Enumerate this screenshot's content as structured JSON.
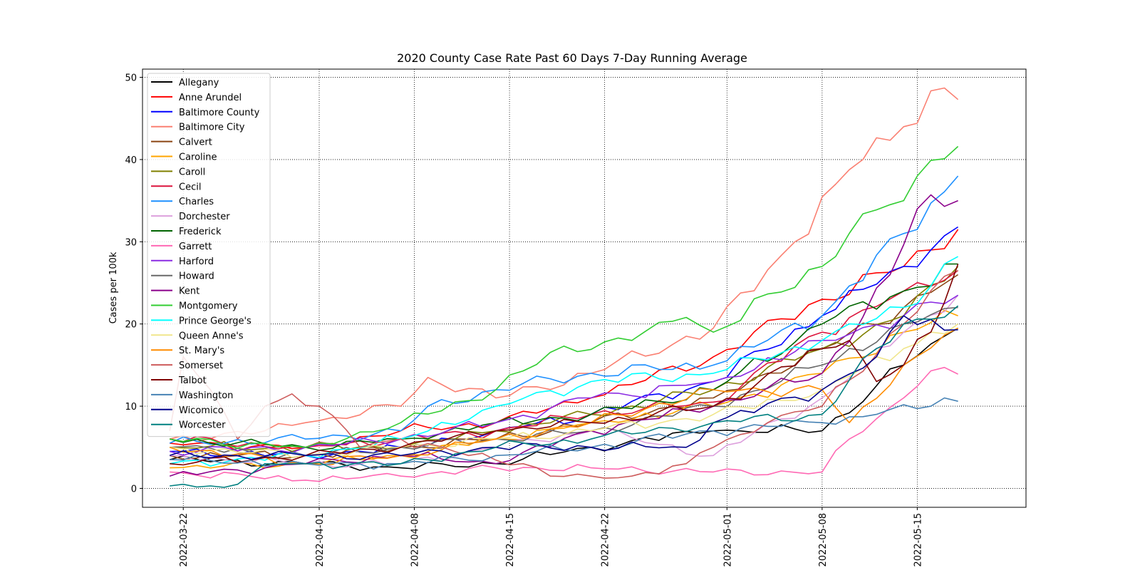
{
  "chart_data": {
    "type": "line",
    "title": "2020 County Case Rate  Past 60 Days 7-Day Running Average",
    "xlabel": "",
    "ylabel": "Cases per 100k",
    "x_start": "2022-03-21",
    "x_end": "2022-05-19",
    "xlim": [
      "2022-03-19",
      "2022-05-23"
    ],
    "ylim": [
      -2.3,
      51
    ],
    "xticks": [
      "2022-03-22",
      "2022-04-01",
      "2022-04-08",
      "2022-04-15",
      "2022-04-22",
      "2022-05-01",
      "2022-05-08",
      "2022-05-15"
    ],
    "yticks": [
      0,
      10,
      20,
      30,
      40,
      50
    ],
    "grid": true,
    "legend_position": "upper-left",
    "series": [
      {
        "name": "Allegany",
        "color": "#000000",
        "anchors": [
          [
            0,
            3.5
          ],
          [
            10,
            3
          ],
          [
            17,
            2.5
          ],
          [
            24,
            3
          ],
          [
            31,
            5
          ],
          [
            40,
            7
          ],
          [
            48,
            7
          ],
          [
            54,
            15
          ],
          [
            58,
            19.5
          ]
        ]
      },
      {
        "name": "Anne Arundel",
        "color": "#ff0000",
        "anchors": [
          [
            0,
            5.5
          ],
          [
            10,
            5
          ],
          [
            17,
            7
          ],
          [
            24,
            8
          ],
          [
            31,
            11
          ],
          [
            40,
            16
          ],
          [
            48,
            23
          ],
          [
            54,
            27
          ],
          [
            56,
            29
          ],
          [
            58,
            31.5
          ]
        ]
      },
      {
        "name": "Baltimore County",
        "color": "#0000ff",
        "anchors": [
          [
            0,
            4.5
          ],
          [
            10,
            4
          ],
          [
            17,
            5
          ],
          [
            24,
            7
          ],
          [
            31,
            9
          ],
          [
            40,
            13
          ],
          [
            48,
            21
          ],
          [
            54,
            27
          ],
          [
            56,
            29
          ],
          [
            58,
            31.8
          ]
        ]
      },
      {
        "name": "Baltimore City",
        "color": "#fa8072",
        "anchors": [
          [
            0,
            6
          ],
          [
            7,
            7
          ],
          [
            10,
            8
          ],
          [
            17,
            10
          ],
          [
            19,
            13.5
          ],
          [
            24,
            11
          ],
          [
            31,
            14
          ],
          [
            40,
            19.5
          ],
          [
            46,
            30
          ],
          [
            49,
            37
          ],
          [
            51,
            40
          ],
          [
            54,
            44
          ],
          [
            57,
            48.7
          ],
          [
            58,
            47.3
          ]
        ]
      },
      {
        "name": "Calvert",
        "color": "#8b4513",
        "anchors": [
          [
            0,
            4
          ],
          [
            10,
            4
          ],
          [
            17,
            5
          ],
          [
            24,
            6
          ],
          [
            31,
            8
          ],
          [
            40,
            11
          ],
          [
            48,
            17
          ],
          [
            54,
            22
          ],
          [
            58,
            26
          ]
        ]
      },
      {
        "name": "Caroline",
        "color": "#ffa500",
        "anchors": [
          [
            0,
            2.5
          ],
          [
            10,
            3
          ],
          [
            17,
            4
          ],
          [
            24,
            6
          ],
          [
            31,
            8
          ],
          [
            40,
            10
          ],
          [
            48,
            14
          ],
          [
            54,
            19
          ],
          [
            58,
            21
          ]
        ]
      },
      {
        "name": "Caroll",
        "color": "#808000",
        "anchors": [
          [
            0,
            5
          ],
          [
            10,
            5
          ],
          [
            17,
            5
          ],
          [
            24,
            7
          ],
          [
            31,
            9
          ],
          [
            40,
            12
          ],
          [
            48,
            17
          ],
          [
            54,
            21
          ],
          [
            58,
            27
          ]
        ]
      },
      {
        "name": "Cecil",
        "color": "#dc143c",
        "anchors": [
          [
            0,
            6
          ],
          [
            10,
            5
          ],
          [
            17,
            6
          ],
          [
            24,
            7
          ],
          [
            31,
            9
          ],
          [
            40,
            10.5
          ],
          [
            48,
            19
          ],
          [
            54,
            24
          ],
          [
            58,
            26.5
          ]
        ]
      },
      {
        "name": "Charles",
        "color": "#1e90ff",
        "anchors": [
          [
            0,
            5.5
          ],
          [
            10,
            6
          ],
          [
            17,
            7
          ],
          [
            19,
            10
          ],
          [
            24,
            12
          ],
          [
            31,
            14
          ],
          [
            40,
            15
          ],
          [
            48,
            21
          ],
          [
            54,
            31
          ],
          [
            58,
            38
          ]
        ]
      },
      {
        "name": "Dorchester",
        "color": "#dda0dd",
        "anchors": [
          [
            0,
            4
          ],
          [
            10,
            3
          ],
          [
            17,
            3
          ],
          [
            24,
            5
          ],
          [
            31,
            7
          ],
          [
            40,
            4
          ],
          [
            48,
            11
          ],
          [
            54,
            19
          ],
          [
            58,
            23.5
          ]
        ]
      },
      {
        "name": "Frederick",
        "color": "#006400",
        "anchors": [
          [
            0,
            6
          ],
          [
            10,
            5
          ],
          [
            17,
            6
          ],
          [
            24,
            8
          ],
          [
            31,
            9
          ],
          [
            40,
            12
          ],
          [
            48,
            20
          ],
          [
            54,
            24
          ],
          [
            58,
            27.3
          ]
        ]
      },
      {
        "name": "Garrett",
        "color": "#ff69b4",
        "anchors": [
          [
            0,
            2
          ],
          [
            10,
            1
          ],
          [
            17,
            1.5
          ],
          [
            24,
            2.5
          ],
          [
            31,
            2.5
          ],
          [
            40,
            2
          ],
          [
            48,
            2
          ],
          [
            50,
            6
          ],
          [
            54,
            11
          ],
          [
            56,
            14.3
          ],
          [
            58,
            13.9
          ]
        ]
      },
      {
        "name": "Harford",
        "color": "#8a2be2",
        "anchors": [
          [
            0,
            4.5
          ],
          [
            10,
            5
          ],
          [
            17,
            6
          ],
          [
            24,
            8
          ],
          [
            31,
            11
          ],
          [
            40,
            13
          ],
          [
            48,
            18
          ],
          [
            54,
            21
          ],
          [
            58,
            23.5
          ]
        ]
      },
      {
        "name": "Howard",
        "color": "#696969",
        "anchors": [
          [
            0,
            5
          ],
          [
            10,
            4
          ],
          [
            17,
            5
          ],
          [
            24,
            6
          ],
          [
            31,
            7
          ],
          [
            40,
            10
          ],
          [
            48,
            15
          ],
          [
            54,
            20
          ],
          [
            58,
            22
          ]
        ]
      },
      {
        "name": "Kent",
        "color": "#8b008b",
        "anchors": [
          [
            0,
            1.5
          ],
          [
            10,
            3
          ],
          [
            17,
            4
          ],
          [
            24,
            3
          ],
          [
            31,
            7
          ],
          [
            40,
            10
          ],
          [
            48,
            14
          ],
          [
            53,
            26
          ],
          [
            55,
            34
          ],
          [
            56,
            35.7
          ],
          [
            57,
            34.3
          ],
          [
            58,
            35
          ]
        ]
      },
      {
        "name": "Montgomery",
        "color": "#32cd32",
        "anchors": [
          [
            0,
            6
          ],
          [
            10,
            5
          ],
          [
            17,
            8
          ],
          [
            24,
            12
          ],
          [
            29,
            17.3
          ],
          [
            34,
            18
          ],
          [
            38,
            20.8
          ],
          [
            40,
            19
          ],
          [
            48,
            27
          ],
          [
            51,
            33.4
          ],
          [
            54,
            35
          ],
          [
            55,
            38
          ],
          [
            56,
            39.9
          ],
          [
            57,
            40.1
          ],
          [
            58,
            41.6
          ]
        ]
      },
      {
        "name": "Prince George's",
        "color": "#00ffff",
        "anchors": [
          [
            0,
            3
          ],
          [
            10,
            4
          ],
          [
            17,
            6
          ],
          [
            24,
            10
          ],
          [
            31,
            13
          ],
          [
            40,
            14
          ],
          [
            48,
            18
          ],
          [
            54,
            22
          ],
          [
            58,
            28.2
          ]
        ]
      },
      {
        "name": "Queen Anne's",
        "color": "#f0e68c",
        "anchors": [
          [
            0,
            5
          ],
          [
            10,
            4
          ],
          [
            17,
            5
          ],
          [
            24,
            6
          ],
          [
            31,
            7
          ],
          [
            40,
            9
          ],
          [
            48,
            12
          ],
          [
            54,
            17
          ],
          [
            58,
            20
          ]
        ]
      },
      {
        "name": "St. Mary's",
        "color": "#ff8c00",
        "anchors": [
          [
            0,
            5
          ],
          [
            10,
            3
          ],
          [
            17,
            4
          ],
          [
            24,
            6
          ],
          [
            31,
            8
          ],
          [
            40,
            12
          ],
          [
            48,
            12
          ],
          [
            50,
            8
          ],
          [
            54,
            15
          ],
          [
            58,
            19.5
          ]
        ]
      },
      {
        "name": "Somerset",
        "color": "#cd5c5c",
        "anchors": [
          [
            0,
            7
          ],
          [
            1,
            16
          ],
          [
            3,
            12
          ],
          [
            5,
            6
          ],
          [
            7,
            10
          ],
          [
            9,
            11.5
          ],
          [
            11,
            10
          ],
          [
            14,
            5
          ],
          [
            17,
            6
          ],
          [
            22,
            4
          ],
          [
            26,
            3
          ],
          [
            28,
            1.5
          ],
          [
            31,
            1.5
          ],
          [
            34,
            1.5
          ],
          [
            38,
            3
          ],
          [
            40,
            5
          ],
          [
            44,
            8
          ],
          [
            48,
            10
          ],
          [
            54,
            20
          ],
          [
            58,
            26.5
          ]
        ]
      },
      {
        "name": "Talbot",
        "color": "#800000",
        "anchors": [
          [
            0,
            3
          ],
          [
            10,
            4
          ],
          [
            17,
            5
          ],
          [
            24,
            7
          ],
          [
            31,
            8
          ],
          [
            40,
            10
          ],
          [
            48,
            17
          ],
          [
            50,
            18
          ],
          [
            52,
            13
          ],
          [
            54,
            15
          ],
          [
            56,
            19
          ],
          [
            58,
            27.3
          ]
        ]
      },
      {
        "name": "Washington",
        "color": "#4682b4",
        "anchors": [
          [
            0,
            3.5
          ],
          [
            10,
            3
          ],
          [
            17,
            3
          ],
          [
            24,
            4
          ],
          [
            31,
            5
          ],
          [
            40,
            7
          ],
          [
            48,
            8
          ],
          [
            52,
            9
          ],
          [
            56,
            10
          ],
          [
            57,
            11
          ],
          [
            58,
            10.6
          ]
        ]
      },
      {
        "name": "Wicomico",
        "color": "#00008b",
        "anchors": [
          [
            0,
            4
          ],
          [
            10,
            4
          ],
          [
            17,
            4
          ],
          [
            24,
            5
          ],
          [
            31,
            5
          ],
          [
            38,
            5
          ],
          [
            40,
            8
          ],
          [
            48,
            12
          ],
          [
            52,
            16
          ],
          [
            54,
            21
          ],
          [
            58,
            19.3
          ]
        ]
      },
      {
        "name": "Worcester",
        "color": "#008080",
        "anchors": [
          [
            0,
            0.3
          ],
          [
            1,
            0.5
          ],
          [
            3,
            0.3
          ],
          [
            5,
            0.5
          ],
          [
            7,
            3
          ],
          [
            10,
            3
          ],
          [
            17,
            3
          ],
          [
            24,
            5
          ],
          [
            31,
            6
          ],
          [
            40,
            8
          ],
          [
            48,
            9
          ],
          [
            52,
            17
          ],
          [
            54,
            20
          ],
          [
            58,
            22.2
          ]
        ]
      }
    ]
  }
}
